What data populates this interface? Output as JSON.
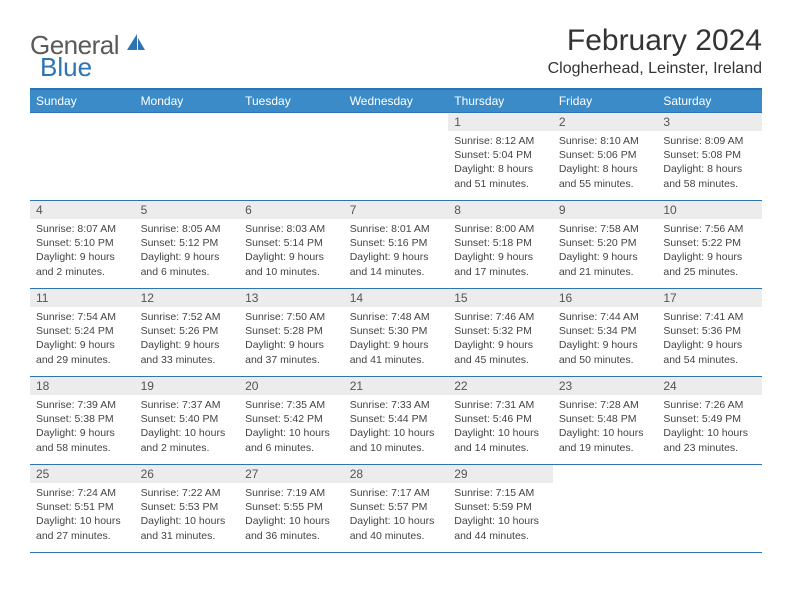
{
  "brand": {
    "name1": "General",
    "name2": "Blue"
  },
  "title": "February 2024",
  "location": "Clogherhead, Leinster, Ireland",
  "colors": {
    "header_bg": "#3b8bc9",
    "header_text": "#ffffff",
    "border": "#2d74b5",
    "daynum_bg": "#ececec",
    "daynum_text": "#555555",
    "body_text": "#444444",
    "logo_gray": "#5a5a5a",
    "logo_blue": "#2d74b5",
    "background": "#ffffff"
  },
  "typography": {
    "title_fontsize": 30,
    "location_fontsize": 16,
    "dayheader_fontsize": 12,
    "daynum_fontsize": 12,
    "cell_fontsize": 10.5
  },
  "day_headers": [
    "Sunday",
    "Monday",
    "Tuesday",
    "Wednesday",
    "Thursday",
    "Friday",
    "Saturday"
  ],
  "weeks": [
    [
      null,
      null,
      null,
      null,
      {
        "n": "1",
        "sunrise": "8:12 AM",
        "sunset": "5:04 PM",
        "daylight": "8 hours and 51 minutes."
      },
      {
        "n": "2",
        "sunrise": "8:10 AM",
        "sunset": "5:06 PM",
        "daylight": "8 hours and 55 minutes."
      },
      {
        "n": "3",
        "sunrise": "8:09 AM",
        "sunset": "5:08 PM",
        "daylight": "8 hours and 58 minutes."
      }
    ],
    [
      {
        "n": "4",
        "sunrise": "8:07 AM",
        "sunset": "5:10 PM",
        "daylight": "9 hours and 2 minutes."
      },
      {
        "n": "5",
        "sunrise": "8:05 AM",
        "sunset": "5:12 PM",
        "daylight": "9 hours and 6 minutes."
      },
      {
        "n": "6",
        "sunrise": "8:03 AM",
        "sunset": "5:14 PM",
        "daylight": "9 hours and 10 minutes."
      },
      {
        "n": "7",
        "sunrise": "8:01 AM",
        "sunset": "5:16 PM",
        "daylight": "9 hours and 14 minutes."
      },
      {
        "n": "8",
        "sunrise": "8:00 AM",
        "sunset": "5:18 PM",
        "daylight": "9 hours and 17 minutes."
      },
      {
        "n": "9",
        "sunrise": "7:58 AM",
        "sunset": "5:20 PM",
        "daylight": "9 hours and 21 minutes."
      },
      {
        "n": "10",
        "sunrise": "7:56 AM",
        "sunset": "5:22 PM",
        "daylight": "9 hours and 25 minutes."
      }
    ],
    [
      {
        "n": "11",
        "sunrise": "7:54 AM",
        "sunset": "5:24 PM",
        "daylight": "9 hours and 29 minutes."
      },
      {
        "n": "12",
        "sunrise": "7:52 AM",
        "sunset": "5:26 PM",
        "daylight": "9 hours and 33 minutes."
      },
      {
        "n": "13",
        "sunrise": "7:50 AM",
        "sunset": "5:28 PM",
        "daylight": "9 hours and 37 minutes."
      },
      {
        "n": "14",
        "sunrise": "7:48 AM",
        "sunset": "5:30 PM",
        "daylight": "9 hours and 41 minutes."
      },
      {
        "n": "15",
        "sunrise": "7:46 AM",
        "sunset": "5:32 PM",
        "daylight": "9 hours and 45 minutes."
      },
      {
        "n": "16",
        "sunrise": "7:44 AM",
        "sunset": "5:34 PM",
        "daylight": "9 hours and 50 minutes."
      },
      {
        "n": "17",
        "sunrise": "7:41 AM",
        "sunset": "5:36 PM",
        "daylight": "9 hours and 54 minutes."
      }
    ],
    [
      {
        "n": "18",
        "sunrise": "7:39 AM",
        "sunset": "5:38 PM",
        "daylight": "9 hours and 58 minutes."
      },
      {
        "n": "19",
        "sunrise": "7:37 AM",
        "sunset": "5:40 PM",
        "daylight": "10 hours and 2 minutes."
      },
      {
        "n": "20",
        "sunrise": "7:35 AM",
        "sunset": "5:42 PM",
        "daylight": "10 hours and 6 minutes."
      },
      {
        "n": "21",
        "sunrise": "7:33 AM",
        "sunset": "5:44 PM",
        "daylight": "10 hours and 10 minutes."
      },
      {
        "n": "22",
        "sunrise": "7:31 AM",
        "sunset": "5:46 PM",
        "daylight": "10 hours and 14 minutes."
      },
      {
        "n": "23",
        "sunrise": "7:28 AM",
        "sunset": "5:48 PM",
        "daylight": "10 hours and 19 minutes."
      },
      {
        "n": "24",
        "sunrise": "7:26 AM",
        "sunset": "5:49 PM",
        "daylight": "10 hours and 23 minutes."
      }
    ],
    [
      {
        "n": "25",
        "sunrise": "7:24 AM",
        "sunset": "5:51 PM",
        "daylight": "10 hours and 27 minutes."
      },
      {
        "n": "26",
        "sunrise": "7:22 AM",
        "sunset": "5:53 PM",
        "daylight": "10 hours and 31 minutes."
      },
      {
        "n": "27",
        "sunrise": "7:19 AM",
        "sunset": "5:55 PM",
        "daylight": "10 hours and 36 minutes."
      },
      {
        "n": "28",
        "sunrise": "7:17 AM",
        "sunset": "5:57 PM",
        "daylight": "10 hours and 40 minutes."
      },
      {
        "n": "29",
        "sunrise": "7:15 AM",
        "sunset": "5:59 PM",
        "daylight": "10 hours and 44 minutes."
      },
      null,
      null
    ]
  ],
  "labels": {
    "sunrise": "Sunrise:",
    "sunset": "Sunset:",
    "daylight": "Daylight:"
  }
}
